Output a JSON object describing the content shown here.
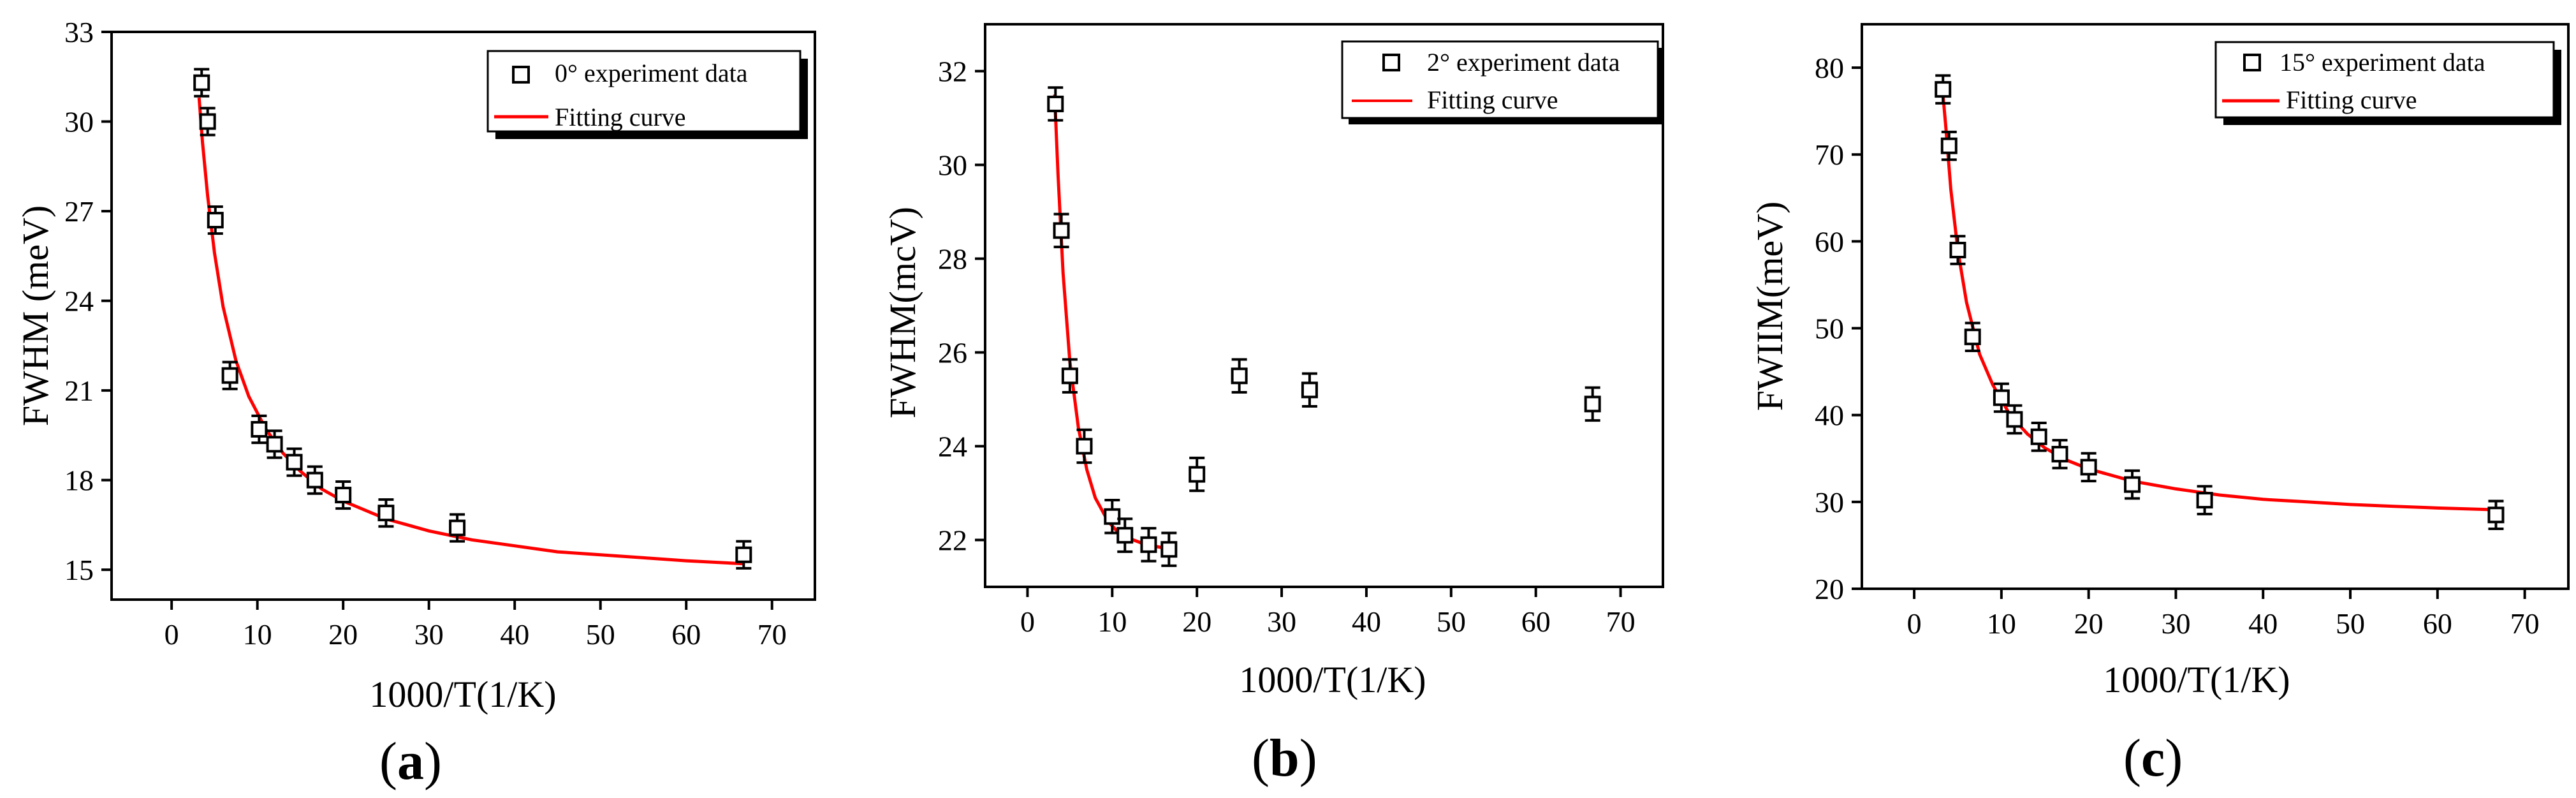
{
  "chart_data": [
    {
      "type": "scatter",
      "panel": "a",
      "caption_open": "(",
      "caption_letter": "a",
      "caption_close": ")",
      "xlabel": "1000/T(1/K)",
      "ylabel": "FWHM (meV)",
      "xlim": [
        -7,
        75
      ],
      "ylim": [
        14,
        33
      ],
      "xticks": [
        0,
        10,
        20,
        30,
        40,
        50,
        60,
        70
      ],
      "yticks": [
        15,
        18,
        21,
        24,
        27,
        30,
        33
      ],
      "grid": false,
      "legend_position": "top-right",
      "series": [
        {
          "name": "0° experiment data",
          "kind": "scatter-errorbar",
          "x": [
            3.5,
            4.2,
            5.1,
            6.8,
            10.2,
            12,
            14.3,
            16.7,
            20,
            25,
            33.3,
            66.7
          ],
          "y": [
            31.3,
            30.0,
            26.7,
            21.5,
            19.7,
            19.2,
            18.6,
            18.0,
            17.5,
            16.9,
            16.4,
            15.5
          ],
          "err": [
            0.45,
            0.45,
            0.45,
            0.45,
            0.45,
            0.45,
            0.45,
            0.45,
            0.45,
            0.45,
            0.45,
            0.45
          ]
        },
        {
          "name": "Fitting curve",
          "kind": "line",
          "color": "#ff0000",
          "x": [
            3.2,
            3.6,
            4.2,
            5,
            6,
            7.5,
            9,
            11,
            13,
            15,
            17.5,
            20,
            25,
            30,
            35,
            40,
            45,
            50,
            55,
            60,
            66.7
          ],
          "y": [
            30.8,
            29.3,
            27.5,
            25.6,
            23.8,
            22.0,
            20.8,
            19.7,
            18.9,
            18.3,
            17.7,
            17.3,
            16.7,
            16.3,
            16.0,
            15.8,
            15.6,
            15.5,
            15.4,
            15.3,
            15.2
          ]
        }
      ]
    },
    {
      "type": "scatter",
      "panel": "b",
      "caption_open": "(",
      "caption_letter": "b",
      "caption_close": ")",
      "xlabel": "1000/T(1/K)",
      "ylabel": "FWHM(mcV)",
      "xlim": [
        -5,
        75
      ],
      "ylim": [
        21,
        33
      ],
      "xticks": [
        0,
        10,
        20,
        30,
        40,
        50,
        60,
        70
      ],
      "yticks": [
        22,
        24,
        26,
        28,
        30,
        32
      ],
      "grid": false,
      "legend_position": "top-right",
      "series": [
        {
          "name": "2° experiment data",
          "kind": "scatter-errorbar",
          "x": [
            3.3,
            4.0,
            5.0,
            6.7,
            10,
            11.5,
            14.3,
            16.7,
            20,
            25,
            33.3,
            66.7
          ],
          "y": [
            31.3,
            28.6,
            25.5,
            24.0,
            22.5,
            22.1,
            21.9,
            21.8,
            23.4,
            25.5,
            25.2,
            24.9
          ],
          "err": [
            0.35,
            0.35,
            0.35,
            0.35,
            0.35,
            0.35,
            0.35,
            0.35,
            0.35,
            0.35,
            0.35,
            0.35
          ]
        },
        {
          "name": "Fitting curve",
          "kind": "line",
          "color": "#ff0000",
          "x": [
            3.2,
            3.6,
            4.2,
            5,
            6,
            7,
            8,
            9.5,
            11,
            12.5,
            14,
            15.5,
            16.7
          ],
          "y": [
            31.5,
            29.8,
            27.7,
            25.8,
            24.4,
            23.5,
            22.9,
            22.4,
            22.1,
            22.0,
            21.9,
            21.85,
            21.8
          ]
        }
      ]
    },
    {
      "type": "scatter",
      "panel": "c",
      "caption_open": "(",
      "caption_letter": "c",
      "caption_close": ")",
      "xlabel": "1000/T(1/K)",
      "ylabel": "FWIIM(meV)",
      "xlim": [
        -6,
        75
      ],
      "ylim": [
        20,
        85
      ],
      "xticks": [
        0,
        10,
        20,
        30,
        40,
        50,
        60,
        70
      ],
      "yticks": [
        20,
        30,
        40,
        50,
        60,
        70,
        80
      ],
      "grid": false,
      "legend_position": "top-right",
      "series": [
        {
          "name": "15° experiment data",
          "kind": "scatter-errorbar",
          "x": [
            3.3,
            4.0,
            5.0,
            6.7,
            10,
            11.5,
            14.3,
            16.7,
            20,
            25,
            33.3,
            66.7
          ],
          "y": [
            77.5,
            71.0,
            59.0,
            49.0,
            42.0,
            39.5,
            37.5,
            35.5,
            34.0,
            32.0,
            30.2,
            28.5
          ],
          "err": [
            1.6,
            1.6,
            1.6,
            1.6,
            1.6,
            1.6,
            1.6,
            1.6,
            1.6,
            1.6,
            1.6,
            1.6
          ]
        },
        {
          "name": "Fitting curve",
          "kind": "line",
          "color": "#ff0000",
          "x": [
            3.2,
            3.6,
            4.2,
            5,
            6,
            7.5,
            9,
            11,
            13,
            15,
            17.5,
            20,
            25,
            30,
            35,
            40,
            45,
            50,
            55,
            60,
            66.7
          ],
          "y": [
            78.0,
            73.5,
            66.0,
            59.0,
            53.0,
            47.0,
            43.5,
            40.0,
            37.8,
            36.2,
            34.8,
            33.8,
            32.4,
            31.5,
            30.8,
            30.3,
            30.0,
            29.7,
            29.5,
            29.3,
            29.1
          ]
        }
      ]
    }
  ]
}
